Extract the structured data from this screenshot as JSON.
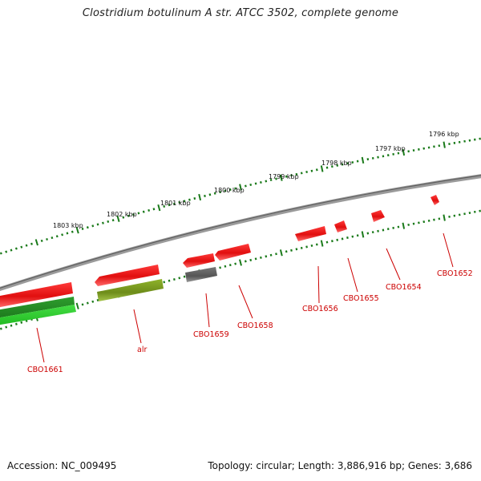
{
  "title": "Clostridium botulinum A str. ATCC 3502, complete genome",
  "footer": {
    "accession": "Accession: NC_009495",
    "summary": "Topology: circular; Length: 3,886,916 bp; Genes: 3,686"
  },
  "colors": {
    "backbone": "#888888",
    "tick": "#1a7a1a",
    "gene_red": "#ee1111",
    "gene_green_dark": "#228b22",
    "gene_green_light": "#33cc33",
    "gene_olive": "#7a9a20",
    "gene_gray": "#666666",
    "label": "#cc0000"
  },
  "scale_labels": [
    "1796 kbp",
    "1797 kbp",
    "1798 kbp",
    "1799 kbp",
    "1800 kbp",
    "1801 kbp",
    "1802 kbp",
    "1803 kbp"
  ],
  "gene_labels": [
    "CBO1652",
    "CBO1654",
    "CBO1655",
    "CBO1656",
    "CBO1658",
    "CBO1659",
    "alr",
    "CBO1661"
  ]
}
